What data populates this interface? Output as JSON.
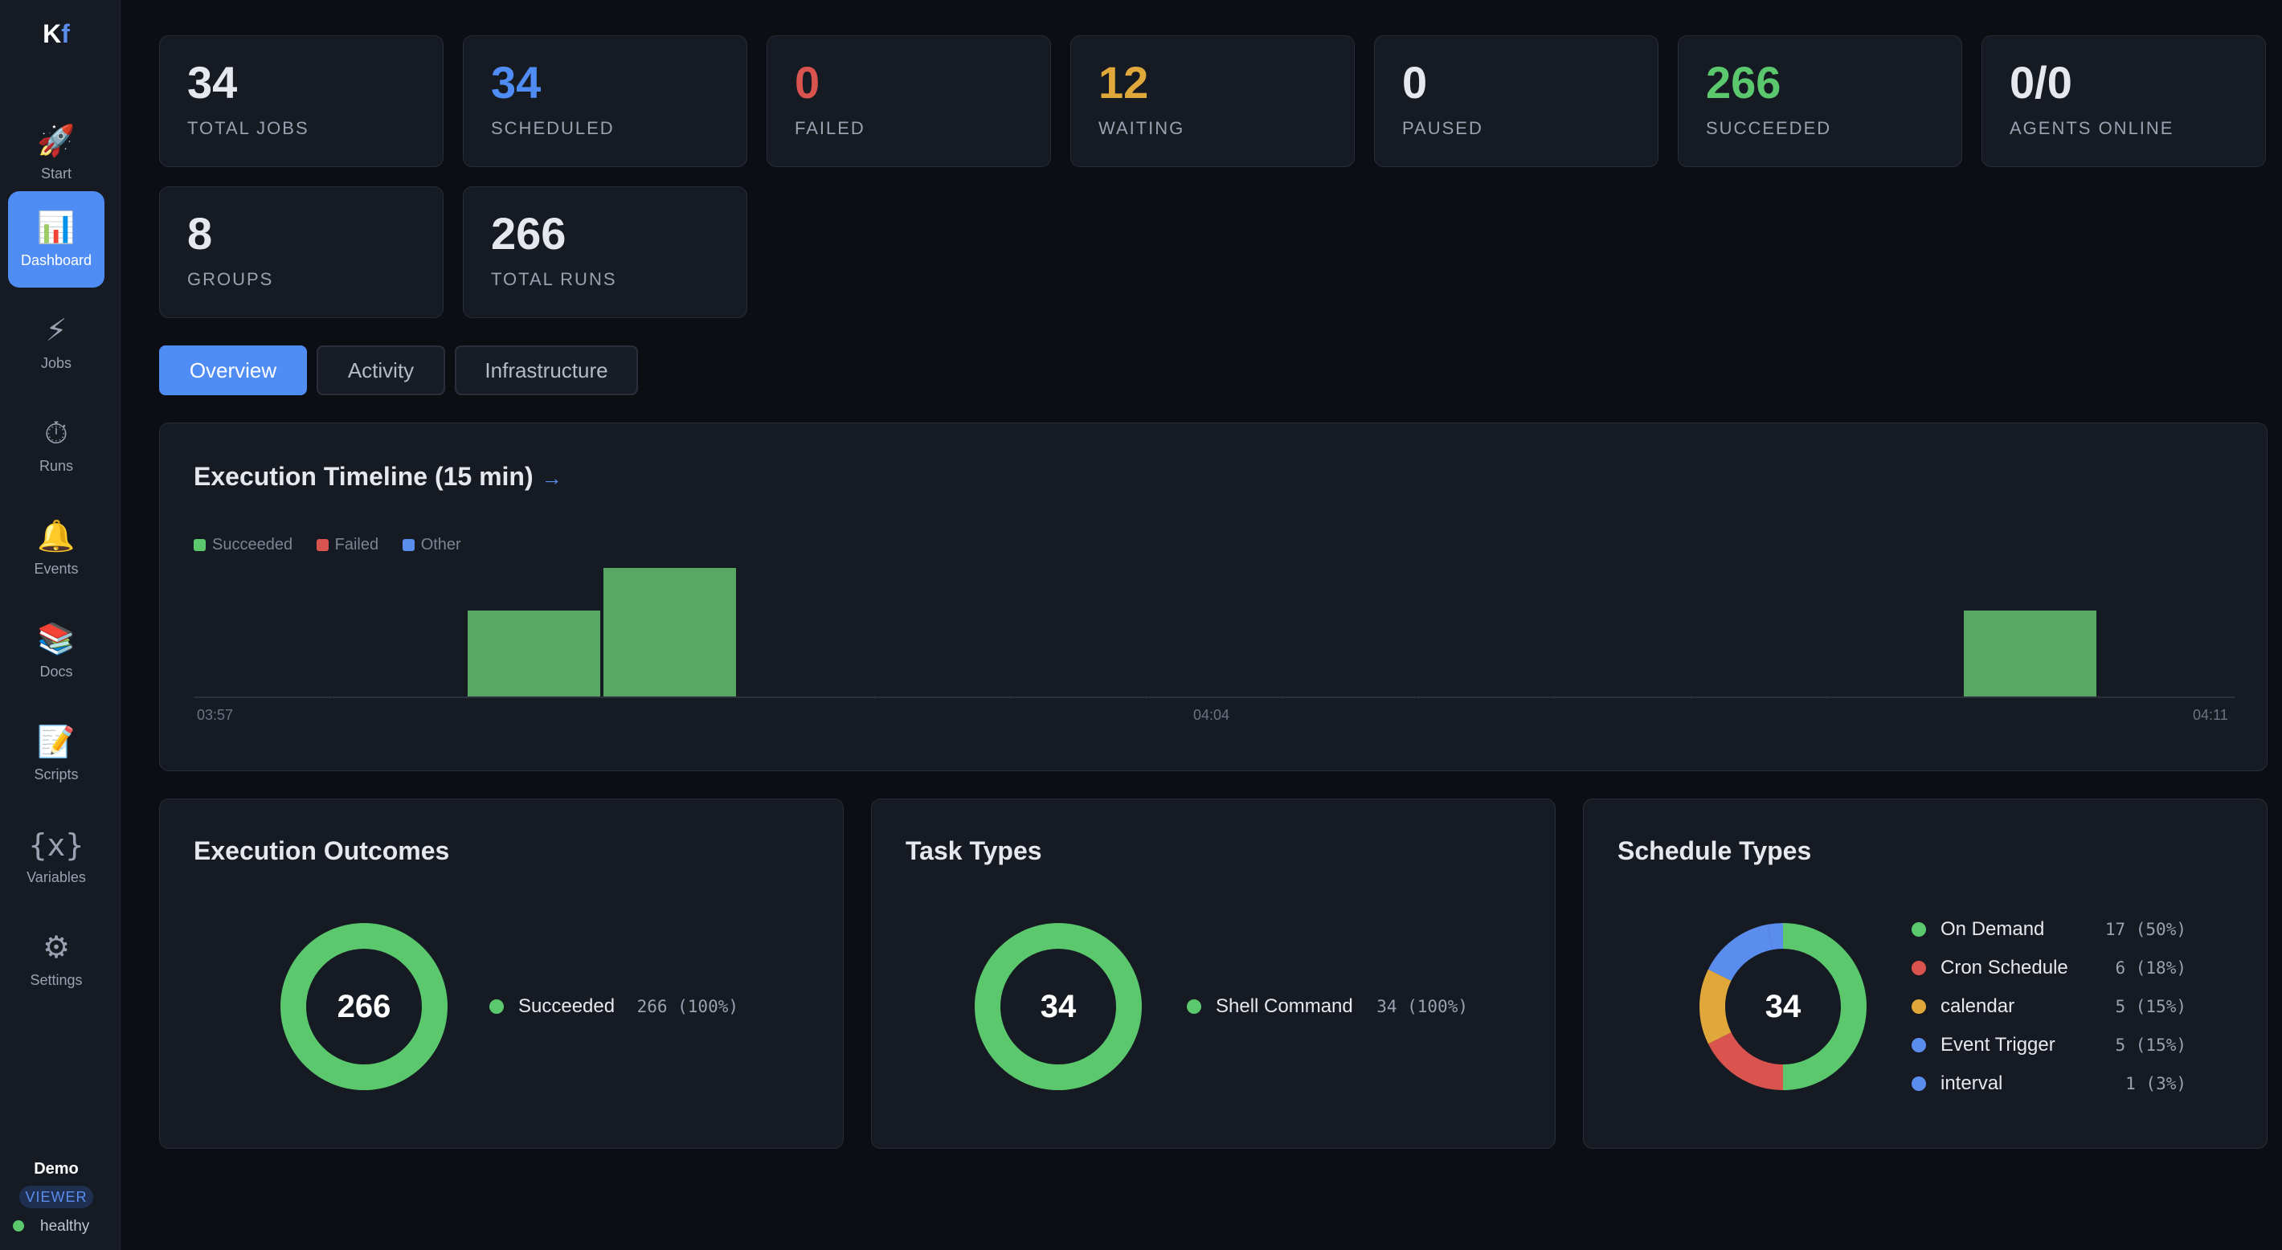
{
  "app": {
    "logo_k": "K",
    "logo_f": "f"
  },
  "sidebar": {
    "items": [
      {
        "label": "Start",
        "icon": "🚀"
      },
      {
        "label": "Dashboard",
        "icon": "📊"
      },
      {
        "label": "Jobs",
        "icon": "⚡"
      },
      {
        "label": "Runs",
        "icon": "⏱"
      },
      {
        "label": "Events",
        "icon": "🔔"
      },
      {
        "label": "Docs",
        "icon": "📚"
      },
      {
        "label": "Scripts",
        "icon": "📝"
      },
      {
        "label": "Variables",
        "icon": "{x}"
      },
      {
        "label": "Settings",
        "icon": "⚙"
      }
    ],
    "user": "Demo",
    "role": "VIEWER",
    "health": "healthy"
  },
  "stats": [
    {
      "value": "34",
      "label": "TOTAL JOBS",
      "color": "#e6e8ee"
    },
    {
      "value": "34",
      "label": "SCHEDULED",
      "color": "#4f8df5"
    },
    {
      "value": "0",
      "label": "FAILED",
      "color": "#d9534f"
    },
    {
      "value": "12",
      "label": "WAITING",
      "color": "#e0a83b"
    },
    {
      "value": "0",
      "label": "PAUSED",
      "color": "#e6e8ee"
    },
    {
      "value": "266",
      "label": "SUCCEEDED",
      "color": "#5bc86e"
    },
    {
      "value": "0/0",
      "label": "AGENTS ONLINE",
      "color": "#e6e8ee"
    },
    {
      "value": "8",
      "label": "GROUPS",
      "color": "#e6e8ee"
    },
    {
      "value": "266",
      "label": "TOTAL RUNS",
      "color": "#e6e8ee"
    }
  ],
  "tabs": [
    {
      "label": "Overview",
      "active": true
    },
    {
      "label": "Activity",
      "active": false
    },
    {
      "label": "Infrastructure",
      "active": false
    }
  ],
  "timeline": {
    "title": "Execution Timeline (15 min)",
    "arrow": "→"
  },
  "outcomes": {
    "title": "Execution Outcomes",
    "total": "266",
    "legend": [
      {
        "label": "Succeeded",
        "value": "266 (100%)",
        "color": "#5bc86e"
      }
    ]
  },
  "task_types": {
    "title": "Task Types",
    "total": "34",
    "legend": [
      {
        "label": "Shell Command",
        "value": "34 (100%)",
        "color": "#5bc86e"
      }
    ]
  },
  "schedule_types": {
    "title": "Schedule Types",
    "total": "34",
    "legend": [
      {
        "label": "On Demand",
        "value": "17 (50%)",
        "color": "#5bc86e"
      },
      {
        "label": "Cron Schedule",
        "value": "6 (18%)",
        "color": "#d9534f"
      },
      {
        "label": "calendar",
        "value": "5 (15%)",
        "color": "#e0a83b"
      },
      {
        "label": "Event Trigger",
        "value": "5 (15%)",
        "color": "#5b8def"
      },
      {
        "label": "interval",
        "value": "1 (3%)",
        "color": "#5b8def"
      }
    ]
  },
  "chart_data": [
    {
      "type": "bar",
      "title": "Execution Timeline (15 min)",
      "legend": [
        "Succeeded",
        "Failed",
        "Other"
      ],
      "legend_colors": [
        "#5bc86e",
        "#d9534f",
        "#5b8def"
      ],
      "x_tick_labels": [
        "03:57",
        "04:04",
        "04:11"
      ],
      "categories": [
        "03:57",
        "03:58",
        "03:59",
        "04:00",
        "04:01",
        "04:02",
        "04:03",
        "04:04",
        "04:05",
        "04:06",
        "04:07",
        "04:08",
        "04:09",
        "04:10",
        "04:11"
      ],
      "series": [
        {
          "name": "Succeeded",
          "values": [
            0,
            0,
            2,
            3,
            0,
            0,
            0,
            0,
            0,
            0,
            0,
            0,
            0,
            2,
            0
          ]
        },
        {
          "name": "Failed",
          "values": [
            0,
            0,
            0,
            0,
            0,
            0,
            0,
            0,
            0,
            0,
            0,
            0,
            0,
            0,
            0
          ]
        },
        {
          "name": "Other",
          "values": [
            0,
            0,
            0,
            0,
            0,
            0,
            0,
            0,
            0,
            0,
            0,
            0,
            0,
            0,
            0
          ]
        }
      ],
      "ylim": [
        0,
        3
      ]
    },
    {
      "type": "pie",
      "title": "Execution Outcomes",
      "categories": [
        "Succeeded"
      ],
      "values": [
        266
      ],
      "colors": [
        "#5bc86e"
      ]
    },
    {
      "type": "pie",
      "title": "Task Types",
      "categories": [
        "Shell Command"
      ],
      "values": [
        34
      ],
      "colors": [
        "#5bc86e"
      ]
    },
    {
      "type": "pie",
      "title": "Schedule Types",
      "categories": [
        "On Demand",
        "Cron Schedule",
        "calendar",
        "Event Trigger",
        "interval"
      ],
      "values": [
        17,
        6,
        5,
        5,
        1
      ],
      "colors": [
        "#5bc86e",
        "#d9534f",
        "#e0a83b",
        "#5b8def",
        "#5b8def"
      ]
    }
  ]
}
